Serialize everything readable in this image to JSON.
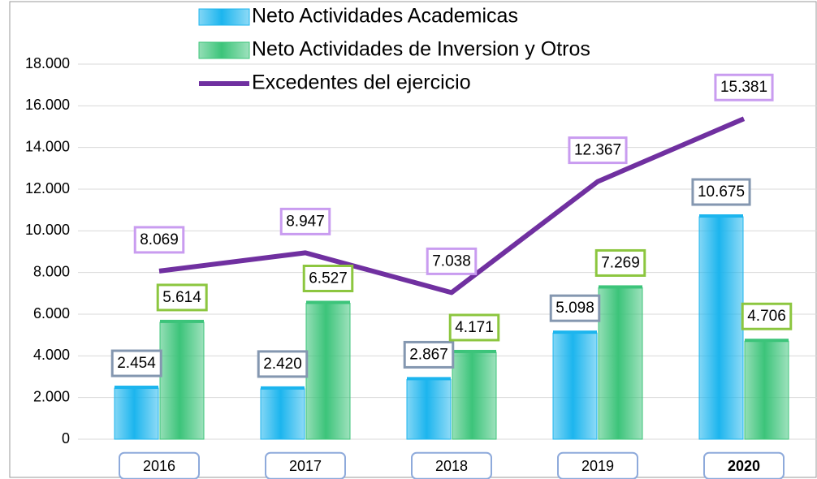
{
  "chart_data": {
    "type": "bar",
    "categories": [
      "2016",
      "2017",
      "2018",
      "2019",
      "2020"
    ],
    "series": [
      {
        "name": "Neto Actividades Academicas",
        "type": "bar",
        "color": "#1cb5ee",
        "label_border": "#8497b0",
        "values": [
          2454,
          2420,
          2867,
          5098,
          10675
        ],
        "value_labels": [
          "2.454",
          "2.420",
          "2.867",
          "5.098",
          "10.675"
        ]
      },
      {
        "name": "Neto Actividades de Inversion y Otros",
        "type": "bar",
        "color": "#3cc47a",
        "label_border": "#8cc63f",
        "values": [
          5614,
          6527,
          4171,
          7269,
          4706
        ],
        "value_labels": [
          "5.614",
          "6.527",
          "4.171",
          "7.269",
          "4.706"
        ]
      },
      {
        "name": "Excedentes del ejercicio",
        "type": "line",
        "color": "#7030a0",
        "label_border": "#c99cf0",
        "values": [
          8069,
          8947,
          7038,
          12367,
          15381
        ],
        "value_labels": [
          "8.069",
          "8.947",
          "7.038",
          "12.367",
          "15.381"
        ]
      }
    ],
    "ylim": [
      0,
      21000
    ],
    "yticks": [
      0,
      {
        "value": 2000,
        "label": "2.000"
      },
      {
        "value": 4000,
        "label": "4.000"
      },
      {
        "value": 6000,
        "label": "6.000"
      },
      {
        "value": 8000,
        "label": "8.000"
      },
      {
        "value": 10000,
        "label": "10.000"
      },
      {
        "value": 12000,
        "label": "12.000"
      },
      {
        "value": 14000,
        "label": "14.000"
      },
      {
        "value": 16000,
        "label": "16.000"
      },
      {
        "value": 18000,
        "label": "18.000"
      }
    ],
    "grid": true
  }
}
